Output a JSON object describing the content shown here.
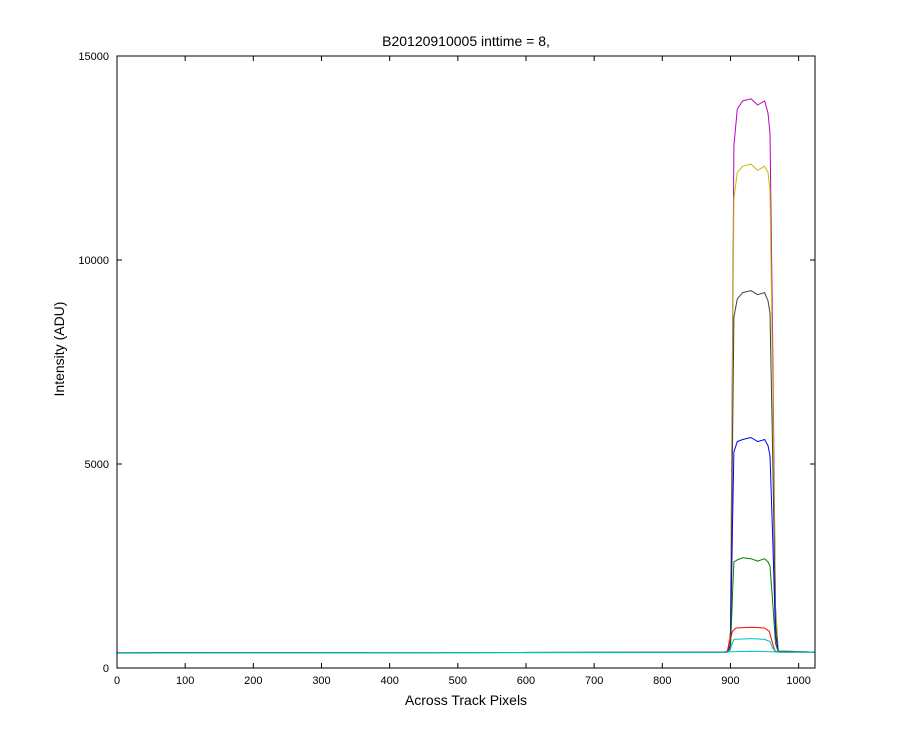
{
  "chart_data": {
    "type": "line",
    "title": "B20120910005 inttime = 8,",
    "xlabel": "Across Track Pixels",
    "ylabel": "Intensity (ADU)",
    "xlim": [
      0,
      1024
    ],
    "ylim": [
      0,
      15000
    ],
    "xticks": [
      0,
      100,
      200,
      300,
      400,
      500,
      600,
      700,
      800,
      900,
      1000
    ],
    "yticks": [
      0,
      5000,
      10000,
      15000
    ],
    "grid": false,
    "legend": false,
    "baseline": 370,
    "series": [
      {
        "color": "#bf00bf",
        "points": [
          [
            0,
            370
          ],
          [
            890,
            385
          ],
          [
            896,
            420
          ],
          [
            900,
            900
          ],
          [
            903,
            8000
          ],
          [
            905,
            12800
          ],
          [
            910,
            13700
          ],
          [
            918,
            13900
          ],
          [
            930,
            13950
          ],
          [
            940,
            13800
          ],
          [
            950,
            13900
          ],
          [
            955,
            13600
          ],
          [
            958,
            13100
          ],
          [
            962,
            8000
          ],
          [
            966,
            1500
          ],
          [
            970,
            420
          ],
          [
            1024,
            390
          ]
        ]
      },
      {
        "color": "#bfbf00",
        "points": [
          [
            0,
            370
          ],
          [
            890,
            385
          ],
          [
            896,
            420
          ],
          [
            900,
            850
          ],
          [
            903,
            7200
          ],
          [
            905,
            11500
          ],
          [
            910,
            12150
          ],
          [
            918,
            12300
          ],
          [
            930,
            12350
          ],
          [
            940,
            12200
          ],
          [
            950,
            12300
          ],
          [
            955,
            12150
          ],
          [
            958,
            11700
          ],
          [
            962,
            7000
          ],
          [
            966,
            1400
          ],
          [
            970,
            420
          ],
          [
            1024,
            390
          ]
        ]
      },
      {
        "color": "#404040",
        "points": [
          [
            0,
            370
          ],
          [
            890,
            385
          ],
          [
            896,
            410
          ],
          [
            900,
            700
          ],
          [
            903,
            5500
          ],
          [
            905,
            8600
          ],
          [
            910,
            9050
          ],
          [
            918,
            9200
          ],
          [
            930,
            9250
          ],
          [
            940,
            9150
          ],
          [
            950,
            9200
          ],
          [
            955,
            9000
          ],
          [
            958,
            8700
          ],
          [
            962,
            5200
          ],
          [
            966,
            1100
          ],
          [
            970,
            410
          ],
          [
            1024,
            390
          ]
        ]
      },
      {
        "color": "#0000ff",
        "points": [
          [
            0,
            370
          ],
          [
            890,
            385
          ],
          [
            896,
            400
          ],
          [
            900,
            550
          ],
          [
            903,
            3500
          ],
          [
            905,
            5300
          ],
          [
            910,
            5550
          ],
          [
            918,
            5600
          ],
          [
            930,
            5650
          ],
          [
            940,
            5550
          ],
          [
            950,
            5600
          ],
          [
            955,
            5450
          ],
          [
            958,
            5200
          ],
          [
            962,
            3200
          ],
          [
            966,
            800
          ],
          [
            970,
            400
          ],
          [
            1024,
            390
          ]
        ]
      },
      {
        "color": "#008000",
        "points": [
          [
            0,
            370
          ],
          [
            890,
            385
          ],
          [
            896,
            395
          ],
          [
            900,
            450
          ],
          [
            903,
            1800
          ],
          [
            905,
            2600
          ],
          [
            910,
            2650
          ],
          [
            918,
            2700
          ],
          [
            930,
            2680
          ],
          [
            940,
            2620
          ],
          [
            950,
            2680
          ],
          [
            955,
            2600
          ],
          [
            958,
            2500
          ],
          [
            962,
            1600
          ],
          [
            966,
            600
          ],
          [
            970,
            395
          ],
          [
            1024,
            390
          ]
        ]
      },
      {
        "color": "#ff0000",
        "points": [
          [
            0,
            370
          ],
          [
            890,
            385
          ],
          [
            895,
            390
          ],
          [
            898,
            600
          ],
          [
            903,
            900
          ],
          [
            908,
            980
          ],
          [
            930,
            1000
          ],
          [
            950,
            980
          ],
          [
            957,
            900
          ],
          [
            960,
            700
          ],
          [
            965,
            420
          ],
          [
            970,
            390
          ],
          [
            1024,
            390
          ]
        ]
      },
      {
        "color": "#00bfbf",
        "points": [
          [
            0,
            370
          ],
          [
            890,
            385
          ],
          [
            896,
            390
          ],
          [
            900,
            480
          ],
          [
            905,
            700
          ],
          [
            930,
            720
          ],
          [
            950,
            700
          ],
          [
            958,
            650
          ],
          [
            962,
            480
          ],
          [
            968,
            395
          ],
          [
            1024,
            390
          ]
        ]
      },
      {
        "color": "#00bfbf",
        "points": [
          [
            0,
            365
          ],
          [
            890,
            380
          ],
          [
            900,
            400
          ],
          [
            930,
            410
          ],
          [
            960,
            400
          ],
          [
            975,
            385
          ],
          [
            1024,
            385
          ]
        ]
      }
    ]
  }
}
